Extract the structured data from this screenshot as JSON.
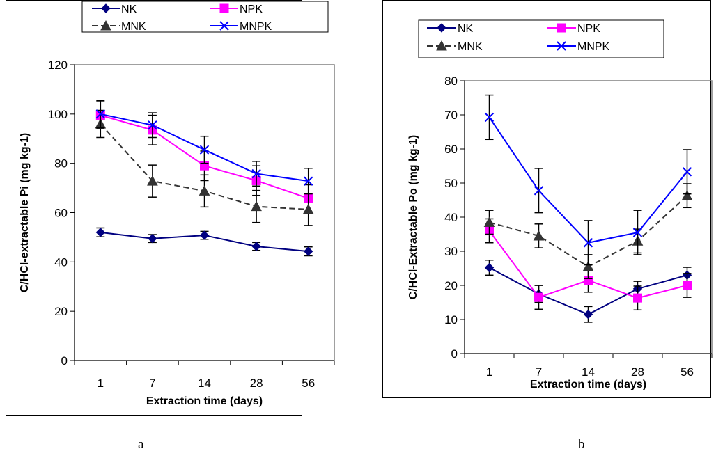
{
  "panels": [
    {
      "letter": "a"
    },
    {
      "letter": "b"
    }
  ],
  "chart_data": [
    {
      "type": "line",
      "xlabel": "Extraction time (days)",
      "ylabel": "C/HCl-extractable Pi (mg kg-1)",
      "categories": [
        "1",
        "7",
        "14",
        "28",
        "56"
      ],
      "ylim": [
        0,
        120
      ],
      "yticks": [
        0,
        20,
        40,
        60,
        80,
        100,
        120
      ],
      "legend_position": "top",
      "series": [
        {
          "name": "NK",
          "color": "#000080",
          "dash": "solid",
          "marker": "diamond",
          "values": [
            52,
            49.5,
            50.8,
            46.3,
            44.3
          ],
          "errors": [
            1.8,
            1.6,
            1.6,
            1.6,
            1.8
          ]
        },
        {
          "name": "NPK",
          "color": "#ff00ff",
          "dash": "solid",
          "marker": "square",
          "values": [
            99.5,
            93.5,
            79,
            73,
            65.8
          ],
          "errors": [
            5.5,
            6,
            6,
            6,
            5.5
          ]
        },
        {
          "name": "MNK",
          "color": "#333333",
          "dash": "dashed",
          "marker": "triangle",
          "values": [
            96,
            72.8,
            68.8,
            62.5,
            61.3
          ],
          "errors": [
            5.5,
            6.5,
            6.5,
            6.5,
            6.5
          ]
        },
        {
          "name": "MNPK",
          "color": "#0000ff",
          "dash": "solid",
          "marker": "cross",
          "values": [
            100,
            95.5,
            85.5,
            75.8,
            72.8
          ],
          "errors": [
            5.5,
            5,
            5.5,
            5,
            5.2
          ]
        }
      ]
    },
    {
      "type": "line",
      "xlabel": "Extraction time (days)",
      "ylabel": "C/HCl-Extractable Po (mg kg-1)",
      "categories": [
        "1",
        "7",
        "14",
        "28",
        "56"
      ],
      "ylim": [
        0,
        80
      ],
      "yticks": [
        0,
        10,
        20,
        30,
        40,
        50,
        60,
        70,
        80
      ],
      "legend_position": "top",
      "series": [
        {
          "name": "NK",
          "color": "#000080",
          "dash": "solid",
          "marker": "diamond",
          "values": [
            25.2,
            17.5,
            11.5,
            19,
            23
          ],
          "errors": [
            2.2,
            2.5,
            2.3,
            2.2,
            2.3
          ]
        },
        {
          "name": "NPK",
          "color": "#ff00ff",
          "dash": "solid",
          "marker": "square",
          "values": [
            36,
            16.5,
            21.5,
            16.3,
            20
          ],
          "errors": [
            3.5,
            3.5,
            3.5,
            3.5,
            3.5
          ]
        },
        {
          "name": "MNK",
          "color": "#333333",
          "dash": "dashed",
          "marker": "triangle",
          "values": [
            38.5,
            34.5,
            25.5,
            33,
            46.3
          ],
          "errors": [
            3.5,
            3.5,
            3.5,
            3.5,
            3.5
          ]
        },
        {
          "name": "MNPK",
          "color": "#0000ff",
          "dash": "solid",
          "marker": "cross",
          "values": [
            69.3,
            47.8,
            32.5,
            35.5,
            53.3
          ],
          "errors": [
            6.5,
            6.5,
            6.5,
            6.5,
            6.5
          ]
        }
      ]
    }
  ]
}
